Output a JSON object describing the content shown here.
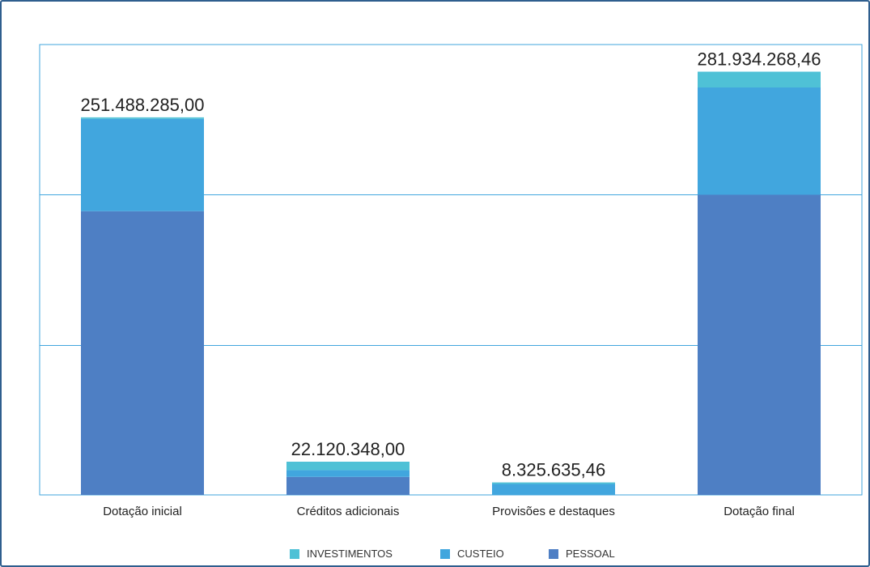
{
  "chart_data": {
    "type": "bar",
    "stacked": true,
    "categories": [
      "Dotação inicial",
      "Créditos adicionais",
      "Provisões e destaques",
      "Dotação final"
    ],
    "series": [
      {
        "name": "PESSOAL",
        "color": "#4e7fc4",
        "values": [
          189000000,
          12000000,
          0,
          200000000
        ]
      },
      {
        "name": "CUSTEIO",
        "color": "#41a6de",
        "values": [
          61500000,
          4500000,
          7300000,
          71400000
        ]
      },
      {
        "name": "INVESTIMENTOS",
        "color": "#4fc1d6",
        "values": [
          988285,
          5620348,
          1025635.46,
          10534268.46
        ]
      }
    ],
    "totals": [
      "251.488.285,00",
      "22.120.348,00",
      "8.325.635,46",
      "281.934.268,46"
    ],
    "ylim": [
      0,
      300000000
    ],
    "grid": true,
    "legend": "bottom",
    "legend_order": [
      "INVESTIMENTOS",
      "CUSTEIO",
      "PESSOAL"
    ]
  }
}
